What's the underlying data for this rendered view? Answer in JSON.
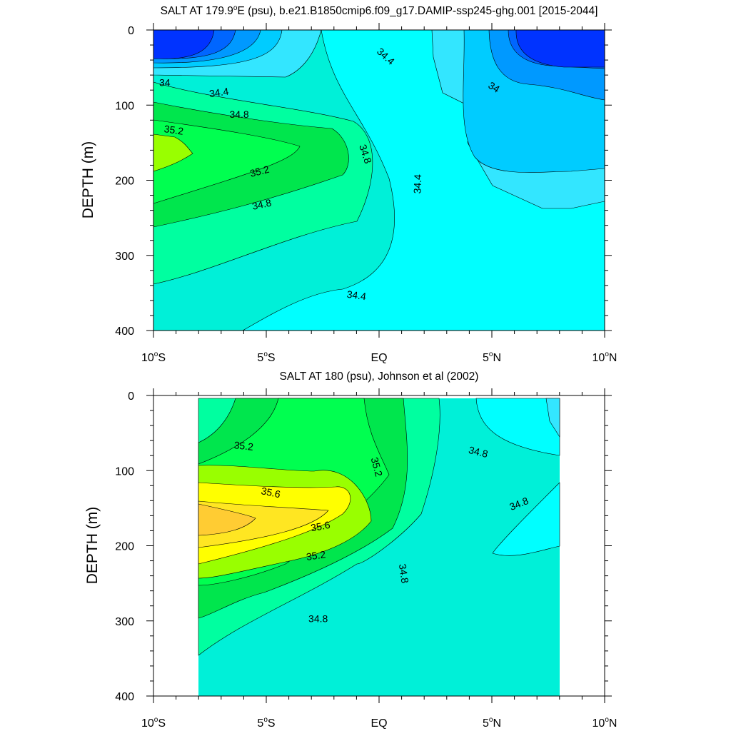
{
  "chart_data": [
    {
      "type": "contour",
      "title": "SALT AT 179.9°E (psu), b.e21.B1850cmip6.f09_g17.DAMIP-ssp245-ghg.001 [2015-2044]",
      "title_parts": {
        "pre": "SALT AT 179.9",
        "deg": "o",
        "post": "E (psu), b.e21.B1850cmip6.f09_g17.DAMIP-ssp245-ghg.001 [2015-2044]"
      },
      "ylabel": "DEPTH (m)",
      "xlim": [
        -10,
        10
      ],
      "ylim": [
        400,
        0
      ],
      "yticks": [
        0,
        100,
        200,
        300,
        400
      ],
      "xticks": [
        {
          "value": -10,
          "num": "10",
          "deg": "o",
          "hemi": "S"
        },
        {
          "value": -5,
          "num": "5",
          "deg": "o",
          "hemi": "S"
        },
        {
          "value": 0,
          "num": "EQ",
          "deg": "",
          "hemi": ""
        },
        {
          "value": 5,
          "num": "5",
          "deg": "o",
          "hemi": "N"
        },
        {
          "value": 10,
          "num": "10",
          "deg": "o",
          "hemi": "N"
        }
      ],
      "contour_labels": [
        {
          "text": "34.4",
          "x": 0.3,
          "y": 35,
          "angle": 42
        },
        {
          "text": "34",
          "x": -9.5,
          "y": 70,
          "angle": 0
        },
        {
          "text": "34.4",
          "x": -7.1,
          "y": 83,
          "angle": -8
        },
        {
          "text": "34.8",
          "x": -6.2,
          "y": 112,
          "angle": 0
        },
        {
          "text": "35.2",
          "x": -9.1,
          "y": 133,
          "angle": 8
        },
        {
          "text": "34.8",
          "x": -0.6,
          "y": 165,
          "angle": 72
        },
        {
          "text": "35.2",
          "x": -5.3,
          "y": 188,
          "angle": -14
        },
        {
          "text": "34.4",
          "x": 1.7,
          "y": 205,
          "angle": -88
        },
        {
          "text": "34.8",
          "x": -5.2,
          "y": 232,
          "angle": -12
        },
        {
          "text": "34",
          "x": 5.1,
          "y": 76,
          "angle": 32
        },
        {
          "text": "34.4",
          "x": -1.0,
          "y": 353,
          "angle": 8
        }
      ]
    },
    {
      "type": "contour",
      "title": "SALT AT 180 (psu), Johnson et al (2002)",
      "ylabel": "DEPTH (m)",
      "xlim": [
        -10,
        10
      ],
      "ylim": [
        400,
        0
      ],
      "data_xrange": [
        -8,
        8
      ],
      "yticks": [
        0,
        100,
        200,
        300,
        400
      ],
      "xticks": [
        {
          "value": -10,
          "num": "10",
          "deg": "o",
          "hemi": "S"
        },
        {
          "value": -5,
          "num": "5",
          "deg": "o",
          "hemi": "S"
        },
        {
          "value": 0,
          "num": "EQ",
          "deg": "",
          "hemi": ""
        },
        {
          "value": 5,
          "num": "5",
          "deg": "o",
          "hemi": "N"
        },
        {
          "value": 10,
          "num": "10",
          "deg": "o",
          "hemi": "N"
        }
      ],
      "contour_labels": [
        {
          "text": "35.2",
          "x": -6.0,
          "y": 67,
          "angle": 6
        },
        {
          "text": "35.2",
          "x": -0.1,
          "y": 95,
          "angle": 75
        },
        {
          "text": "34.8",
          "x": 4.4,
          "y": 75,
          "angle": 14
        },
        {
          "text": "35.6",
          "x": -4.8,
          "y": 129,
          "angle": 12
        },
        {
          "text": "34.8",
          "x": 6.2,
          "y": 144,
          "angle": -22
        },
        {
          "text": "35.6",
          "x": -2.6,
          "y": 174,
          "angle": -10
        },
        {
          "text": "35.2",
          "x": -2.8,
          "y": 213,
          "angle": -8
        },
        {
          "text": "34.8",
          "x": 1.1,
          "y": 237,
          "angle": 82
        },
        {
          "text": "34.8",
          "x": -2.7,
          "y": 297,
          "angle": 0
        }
      ]
    }
  ],
  "colors": {
    "s33_6": "#0033ff",
    "s33_8": "#0066ff",
    "s34_0": "#0099ff",
    "s34_2": "#00ccff",
    "s34_4": "#33e6ff",
    "s34_6": "#00ffff",
    "s34_8": "#00f0d8",
    "s35_0": "#00ffa0",
    "s35_2": "#00e64d",
    "s35_4": "#00ff50",
    "s35_6": "#99ff00",
    "s35_8": "#ffff00",
    "s36_0": "#ffe622",
    "s36_2": "#ffcc33"
  }
}
